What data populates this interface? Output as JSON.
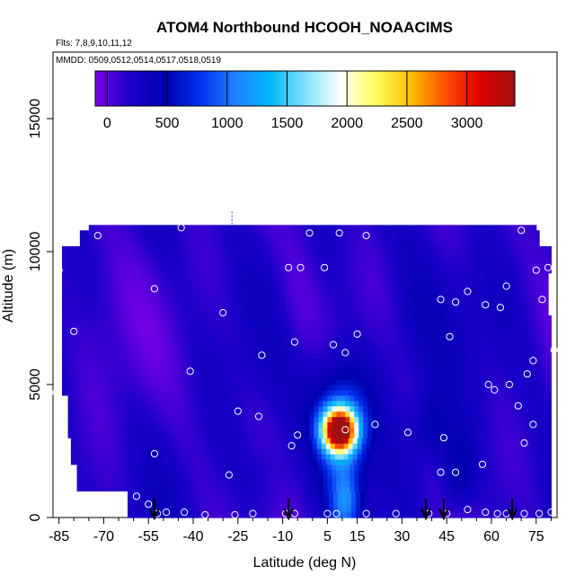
{
  "chart_data": {
    "type": "heatmap",
    "title": "ATOM4 Northbound HCOOH_NOAACIMS",
    "subtitle_flights": "Flts: 7,8,9,10,11,12",
    "subtitle_dates": "MMDD: 0509,0512,0514,0517,0518,0519",
    "xlabel": "Latitude (deg N)",
    "ylabel": "Altitude (m)",
    "xlim": [
      -87,
      82
    ],
    "ylim": [
      0,
      17500
    ],
    "x_tick_labels": [
      "-85",
      "-70",
      "-55",
      "-40",
      "-25",
      "-10",
      "5",
      "15",
      "30",
      "45",
      "60",
      "75"
    ],
    "y_tick_labels": [
      "0",
      "5000",
      "10000",
      "15000"
    ],
    "colorbar": {
      "tick_labels": [
        "0",
        "500",
        "1000",
        "1500",
        "2000",
        "2500",
        "3000"
      ],
      "range": [
        -100,
        3400
      ],
      "colors": [
        "#7a00e6",
        "#1a00c8",
        "#0000b0",
        "#0030f0",
        "#2080ff",
        "#00b8ff",
        "#80e0ff",
        "#ffffff",
        "#ffff60",
        "#ffc000",
        "#ff5000",
        "#e00000",
        "#a01010"
      ]
    },
    "profile_latitudes_with_arrows": [
      -53,
      -8,
      38,
      44,
      67
    ],
    "hotspot": {
      "latitude": 9,
      "altitude": 3300,
      "value": 3300
    }
  }
}
